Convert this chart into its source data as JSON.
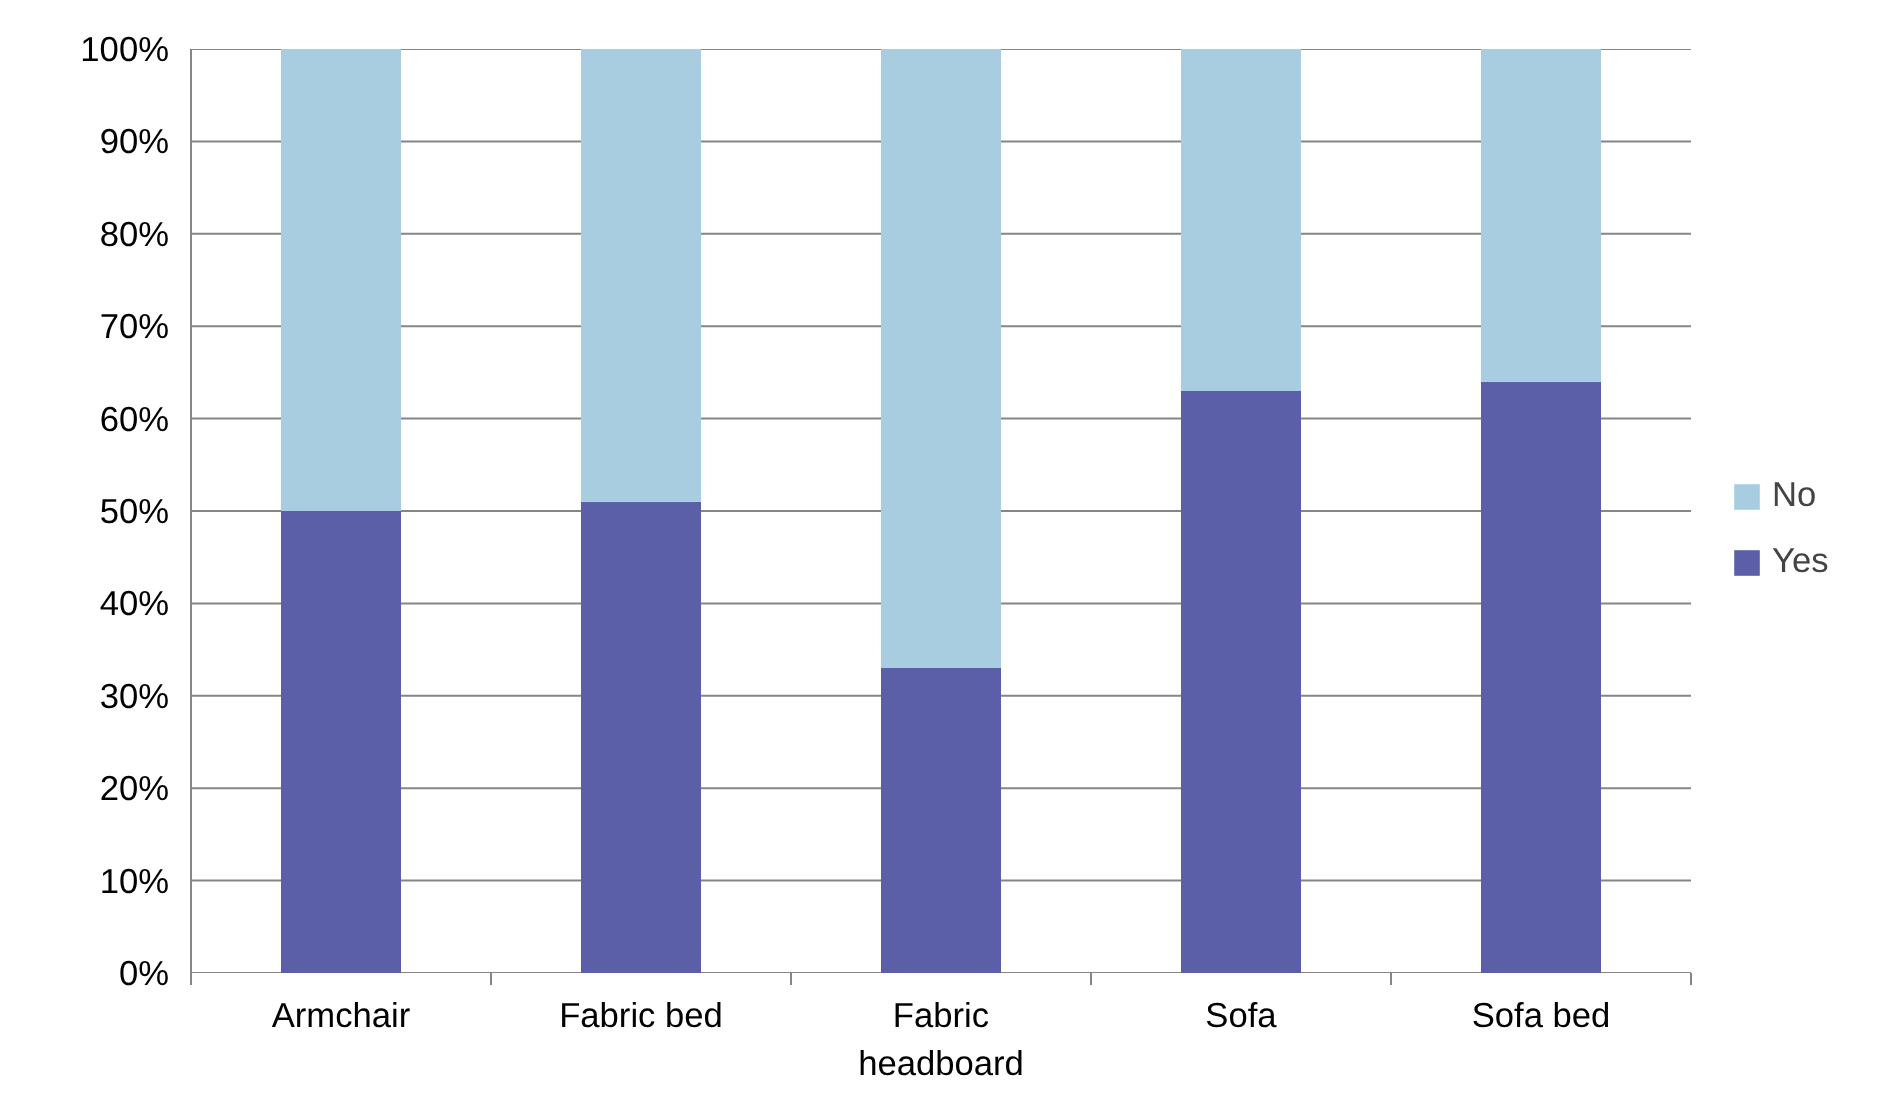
{
  "chart_data": {
    "type": "bar",
    "stacked": true,
    "categories": [
      "Armchair",
      "Fabric bed",
      "Fabric headboard",
      "Sofa",
      "Sofa bed"
    ],
    "series": [
      {
        "name": "Yes",
        "color": "#5a5fa8",
        "values": [
          50,
          51,
          33,
          63,
          64
        ]
      },
      {
        "name": "No",
        "color": "#a8cde0",
        "values": [
          50,
          49,
          67,
          37,
          36
        ]
      }
    ],
    "ylim": [
      0,
      100
    ],
    "yticks": [
      {
        "value": 0,
        "label": "0%"
      },
      {
        "value": 10,
        "label": "10%"
      },
      {
        "value": 20,
        "label": "20%"
      },
      {
        "value": 30,
        "label": "30%"
      },
      {
        "value": 40,
        "label": "40%"
      },
      {
        "value": 50,
        "label": "50%"
      },
      {
        "value": 60,
        "label": "60%"
      },
      {
        "value": 70,
        "label": "70%"
      },
      {
        "value": 80,
        "label": "80%"
      },
      {
        "value": 90,
        "label": "90%"
      },
      {
        "value": 100,
        "label": "100%"
      }
    ],
    "grid": "y",
    "legend": "right"
  }
}
